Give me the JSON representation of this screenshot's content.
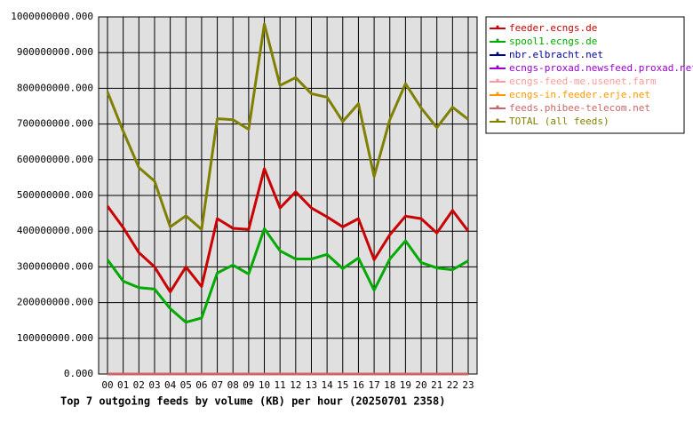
{
  "chart_data": {
    "type": "line",
    "title": "Top 7 outgoing feeds by volume (KB) per hour (20250701 2358)",
    "categories": [
      "00",
      "01",
      "02",
      "03",
      "04",
      "05",
      "06",
      "07",
      "08",
      "09",
      "10",
      "11",
      "12",
      "13",
      "14",
      "15",
      "16",
      "17",
      "18",
      "19",
      "20",
      "21",
      "22",
      "23"
    ],
    "ylim": [
      0,
      1000000000
    ],
    "yticks": [
      {
        "value": 0,
        "label": "0.000"
      },
      {
        "value": 100000000,
        "label": "100000000.000"
      },
      {
        "value": 200000000,
        "label": "200000000.000"
      },
      {
        "value": 300000000,
        "label": "300000000.000"
      },
      {
        "value": 400000000,
        "label": "400000000.000"
      },
      {
        "value": 500000000,
        "label": "500000000.000"
      },
      {
        "value": 600000000,
        "label": "600000000.000"
      },
      {
        "value": 700000000,
        "label": "700000000.000"
      },
      {
        "value": 800000000,
        "label": "800000000.000"
      },
      {
        "value": 900000000,
        "label": "900000000.000"
      },
      {
        "value": 1000000000,
        "label": "1000000000.000"
      }
    ],
    "grid": true,
    "legend": "right",
    "series": [
      {
        "name": "feeder.ecngs.de",
        "color": "#cc0000",
        "values": [
          470000000,
          410000000,
          340000000,
          300000000,
          230000000,
          300000000,
          245000000,
          435000000,
          408000000,
          405000000,
          575000000,
          465000000,
          510000000,
          465000000,
          440000000,
          412000000,
          435000000,
          320000000,
          390000000,
          442000000,
          435000000,
          395000000,
          458000000,
          400000000
        ]
      },
      {
        "name": "spool1.ecngs.de",
        "color": "#00aa00",
        "values": [
          320000000,
          260000000,
          242000000,
          238000000,
          183000000,
          145000000,
          157000000,
          283000000,
          305000000,
          280000000,
          407000000,
          345000000,
          322000000,
          322000000,
          335000000,
          295000000,
          325000000,
          235000000,
          322000000,
          373000000,
          312000000,
          297000000,
          292000000,
          317000000
        ]
      },
      {
        "name": "nbr.elbracht.net",
        "color": "#000099",
        "values": [
          0,
          0,
          0,
          0,
          0,
          0,
          0,
          0,
          0,
          0,
          0,
          0,
          0,
          0,
          0,
          0,
          0,
          0,
          0,
          0,
          0,
          0,
          0,
          0
        ]
      },
      {
        "name": "ecngs-proxad.newsfeed.proxad.net",
        "color": "#9900cc",
        "values": [
          0,
          0,
          0,
          0,
          0,
          0,
          0,
          0,
          0,
          0,
          0,
          0,
          0,
          0,
          0,
          0,
          0,
          0,
          0,
          0,
          0,
          0,
          0,
          0
        ]
      },
      {
        "name": "ecngs-feed-me.usenet.farm",
        "color": "#ff9999",
        "values": [
          0,
          0,
          0,
          0,
          0,
          0,
          0,
          0,
          0,
          0,
          0,
          0,
          0,
          0,
          0,
          0,
          0,
          0,
          0,
          0,
          0,
          0,
          0,
          0
        ]
      },
      {
        "name": "ecngs-in.feeder.erje.net",
        "color": "#ff9900",
        "values": [
          0,
          0,
          0,
          0,
          0,
          0,
          0,
          0,
          0,
          0,
          0,
          0,
          0,
          0,
          0,
          0,
          0,
          0,
          0,
          0,
          0,
          0,
          0,
          0
        ]
      },
      {
        "name": "feeds.phibee-telecom.net",
        "color": "#cc6666",
        "values": [
          0,
          0,
          0,
          0,
          0,
          0,
          0,
          0,
          0,
          0,
          0,
          0,
          0,
          0,
          0,
          0,
          0,
          0,
          0,
          0,
          0,
          0,
          0,
          0
        ]
      },
      {
        "name": "TOTAL (all feeds)",
        "color": "#808000",
        "values": [
          790000000,
          680000000,
          578000000,
          540000000,
          412000000,
          443000000,
          405000000,
          715000000,
          712000000,
          685000000,
          980000000,
          808000000,
          830000000,
          785000000,
          775000000,
          707000000,
          757000000,
          553000000,
          712000000,
          813000000,
          745000000,
          690000000,
          747000000,
          713000000
        ]
      }
    ]
  }
}
